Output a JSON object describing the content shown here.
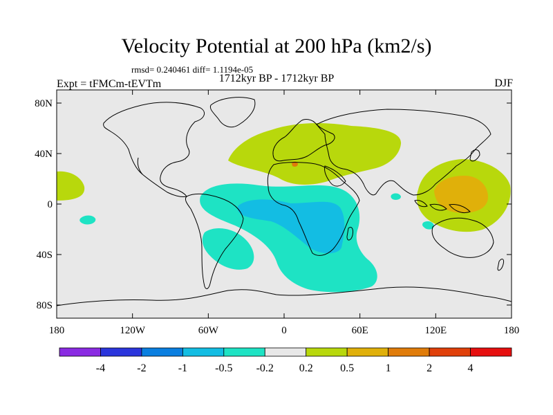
{
  "map": {
    "title": "Velocity Potential at 200 hPa (km2/s)",
    "stats": "rmsd= 0.240461 diff= 1.1194e-05",
    "subtitle": "1712kyr BP - 1712kyr BP",
    "left_label": "Expt = tFMCm-tEVTm",
    "right_label": "DJF",
    "background_color": "#e8e8e8",
    "lon_ticks": [
      "180",
      "120W",
      "60W",
      "0",
      "60E",
      "120E",
      "180"
    ],
    "lat_ticks": [
      "80N",
      "40N",
      "0",
      "40S",
      "80S"
    ]
  },
  "colorbar": {
    "colors": [
      "#8a2be2",
      "#2b35dc",
      "#0a7fe0",
      "#13bde3",
      "#1ee3c4",
      "#e8e8e8",
      "#b8d80c",
      "#e0b00a",
      "#e07c0a",
      "#e0400a",
      "#e60f0f"
    ],
    "labels": [
      "-4",
      "-2",
      "-1",
      "-0.5",
      "-0.2",
      "0.2",
      "0.5",
      "1",
      "2",
      "4"
    ]
  }
}
